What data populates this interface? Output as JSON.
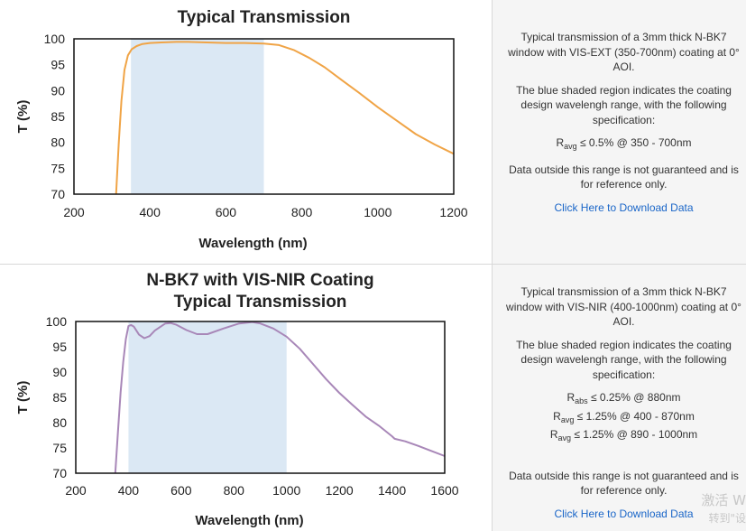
{
  "charts": [
    {
      "title_line1": "",
      "title_line2": "Typical Transmission",
      "xlabel": "Wavelength (nm)",
      "ylabel": "T (%)",
      "description": "Typical transmission of a 3mm thick N-BK7 window with VIS-EXT (350-700nm) coating at 0° AOI.",
      "shaded_note": "The blue shaded region indicates the coating design wavelengh range, with the following specification:",
      "specs": [
        {
          "sym": "R",
          "sub": "avg",
          "text": " ≤ 0.5% @ 350 - 700nm"
        }
      ],
      "disclaimer": "Data outside this range is not guaranteed and is for reference only.",
      "download": "Click Here to Download Data"
    },
    {
      "title_line1": "N-BK7 with VIS-NIR Coating",
      "title_line2": "Typical Transmission",
      "xlabel": "Wavelength (nm)",
      "ylabel": "T (%)",
      "description": "Typical transmission of a 3mm thick N-BK7 window with VIS-NIR (400-1000nm) coating at 0° AOI.",
      "shaded_note": "The blue shaded region indicates the coating design wavelengh range, with the following specification:",
      "specs": [
        {
          "sym": "R",
          "sub": "abs",
          "text": " ≤ 0.25% @ 880nm"
        },
        {
          "sym": "R",
          "sub": "avg",
          "text": " ≤ 1.25% @ 400 - 870nm"
        },
        {
          "sym": "R",
          "sub": "avg",
          "text": " ≤ 1.25% @ 890 - 1000nm"
        }
      ],
      "disclaimer": "Data outside this range is not guaranteed and is for reference only.",
      "download": "Click Here to Download Data"
    }
  ],
  "chart_data": [
    {
      "type": "line",
      "title": "Typical Transmission",
      "xlabel": "Wavelength (nm)",
      "ylabel": "T (%)",
      "xlim": [
        200,
        1200
      ],
      "ylim": [
        70,
        100
      ],
      "xticks": [
        200,
        400,
        600,
        800,
        1000,
        1200
      ],
      "yticks": [
        70,
        75,
        80,
        85,
        90,
        95,
        100
      ],
      "shaded_range": [
        350,
        700
      ],
      "series": [
        {
          "color": "#f0a446",
          "x": [
            311,
            318,
            325,
            333,
            342,
            352,
            365,
            380,
            400,
            430,
            470,
            500,
            550,
            600,
            650,
            700,
            740,
            780,
            820,
            860,
            900,
            950,
            1000,
            1050,
            1100,
            1150,
            1200
          ],
          "y": [
            70,
            80,
            88,
            94,
            96.8,
            98,
            98.6,
            99,
            99.2,
            99.3,
            99.4,
            99.4,
            99.3,
            99.2,
            99.2,
            99.1,
            98.8,
            97.8,
            96.3,
            94.5,
            92.3,
            89.6,
            86.8,
            84.2,
            81.6,
            79.6,
            77.8
          ]
        }
      ]
    },
    {
      "type": "line",
      "title": "N-BK7 with VIS-NIR Coating Typical Transmission",
      "xlabel": "Wavelength (nm)",
      "ylabel": "T (%)",
      "xlim": [
        200,
        1600
      ],
      "ylim": [
        70,
        100
      ],
      "xticks": [
        200,
        400,
        600,
        800,
        1000,
        1200,
        1400,
        1600
      ],
      "yticks": [
        70,
        75,
        80,
        85,
        90,
        95,
        100
      ],
      "shaded_range": [
        400,
        1000
      ],
      "series": [
        {
          "color": "#a887b8",
          "x": [
            350,
            360,
            370,
            380,
            390,
            400,
            410,
            420,
            440,
            460,
            480,
            500,
            540,
            560,
            580,
            620,
            660,
            700,
            760,
            820,
            870,
            900,
            950,
            1000,
            1050,
            1100,
            1150,
            1200,
            1250,
            1300,
            1350,
            1400,
            1410,
            1450,
            1500,
            1550,
            1600
          ],
          "y": [
            70,
            78,
            86,
            92,
            96.5,
            99.1,
            99.3,
            99,
            97.4,
            96.7,
            97.1,
            98.2,
            99.6,
            99.7,
            99.4,
            98.3,
            97.5,
            97.5,
            98.6,
            99.6,
            99.9,
            99.6,
            98.6,
            97,
            94.6,
            91.6,
            88.6,
            85.9,
            83.5,
            81.2,
            79.4,
            77.3,
            76.8,
            76.3,
            75.4,
            74.4,
            73.4
          ]
        }
      ]
    }
  ],
  "watermark": {
    "line1": "激活 W",
    "line2": "转到\"设"
  }
}
